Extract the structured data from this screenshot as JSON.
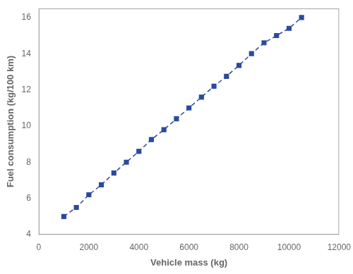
{
  "chart_data": {
    "type": "line",
    "x": [
      1000,
      1500,
      2000,
      2500,
      3000,
      3500,
      4000,
      4500,
      5000,
      5500,
      6000,
      6500,
      7000,
      7500,
      8000,
      8500,
      9000,
      9500,
      10000,
      10500
    ],
    "values": [
      5.0,
      5.5,
      6.2,
      6.75,
      7.4,
      8.0,
      8.6,
      9.25,
      9.8,
      10.4,
      11.0,
      11.6,
      12.2,
      12.75,
      13.35,
      14.0,
      14.6,
      15.0,
      15.4,
      16.0
    ],
    "xlabel": "Vehicle mass (kg)",
    "ylabel": "Fuel consumption (kg/100 km)",
    "xlim": [
      0,
      12000
    ],
    "ylim": [
      4,
      16.5
    ],
    "xticks": [
      0,
      2000,
      4000,
      6000,
      8000,
      10000,
      12000
    ],
    "yticks": [
      4,
      6,
      8,
      10,
      12,
      14,
      16
    ],
    "color": "#2B4A9F",
    "marker": "square",
    "line_style": "dashed",
    "grid": false
  }
}
